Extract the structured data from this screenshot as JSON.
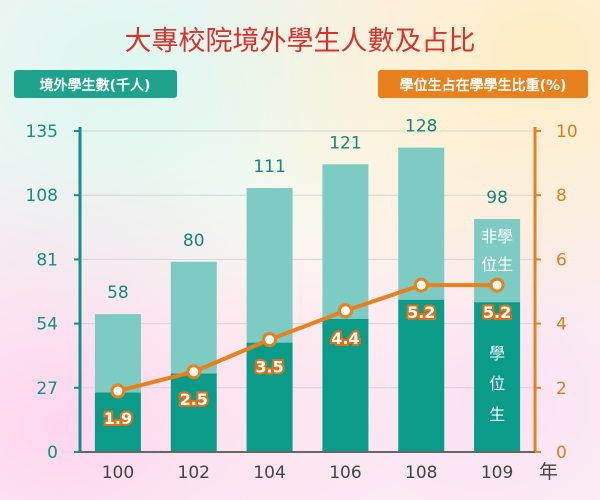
{
  "title": "大專校院境外學生人數及占比",
  "chart_data": {
    "type": "bar",
    "categories": [
      "100",
      "102",
      "104",
      "106",
      "108",
      "109"
    ],
    "x_unit": "年",
    "left_axis": {
      "label": "境外學生數(千人)",
      "ticks": [
        "0",
        "27",
        "54",
        "81",
        "108",
        "135"
      ],
      "range": [
        0,
        135
      ]
    },
    "right_axis": {
      "label": "學位生占在學學生比重(%)",
      "ticks": [
        "0",
        "2",
        "4",
        "6",
        "8",
        "10"
      ],
      "range": [
        0,
        10
      ]
    },
    "series": [
      {
        "name": "學位生",
        "values": [
          25,
          33,
          46,
          56,
          64,
          63
        ]
      },
      {
        "name": "非學位生",
        "values": [
          33,
          47,
          65,
          65,
          64,
          35
        ]
      }
    ],
    "totals": [
      "58",
      "80",
      "111",
      "121",
      "128",
      "98"
    ],
    "line": {
      "values": [
        1.9,
        2.5,
        3.5,
        4.4,
        5.2,
        5.2
      ],
      "labels": [
        "1.9",
        "2.5",
        "3.5",
        "4.4",
        "5.2",
        "5.2"
      ]
    },
    "colors": {
      "degree": "#0a9c89",
      "non_degree": "#7ecbc3",
      "line": "#e8801e",
      "left_badge": "#1fa38c",
      "right_badge": "#e8801e",
      "title": "#d7322b"
    },
    "in_bar_labels": {
      "non_degree": "非學位生",
      "degree": "學位生"
    }
  }
}
